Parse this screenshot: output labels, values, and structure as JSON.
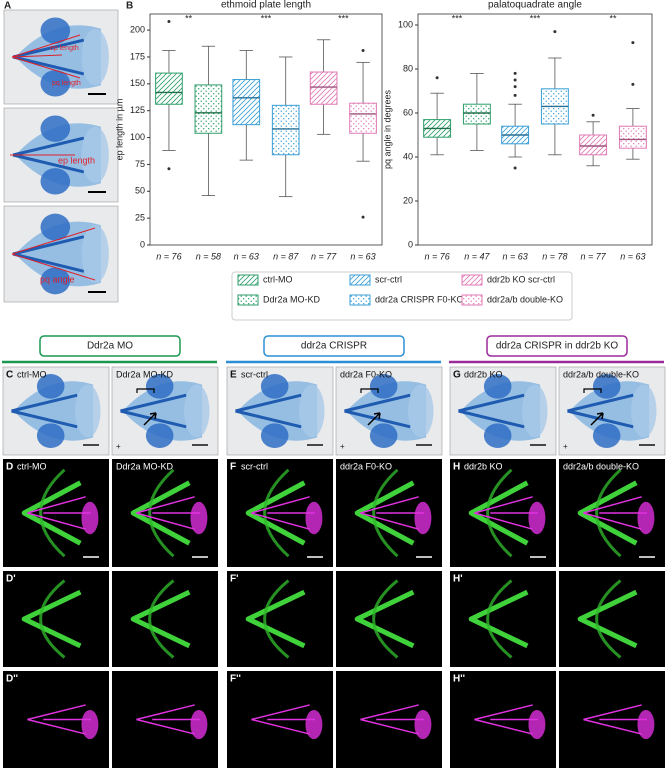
{
  "panel_labels": {
    "a": "A",
    "b": "B"
  },
  "panel_a": {
    "ep_length": "ep length",
    "pq_length": "pq length",
    "pq_angle": "pq angle"
  },
  "chart_data": [
    {
      "type": "box",
      "title": "ethmoid plate length",
      "ylabel": "ep length in µm",
      "ylim": [
        0,
        215
      ],
      "yticks": [
        0,
        25,
        50,
        75,
        100,
        125,
        150,
        175,
        200
      ],
      "significance": [
        "**",
        "***",
        "***"
      ],
      "series": [
        {
          "name": "ctrl-MO",
          "color": "#2e9e6a",
          "hatch": "diagonal",
          "whislo": 88,
          "q1": 131,
          "med": 142,
          "q3": 160,
          "whishi": 181,
          "fliers": [
            208,
            71
          ],
          "n_label": "n = 76"
        },
        {
          "name": "Ddr2a MO-KD",
          "color": "#2e9e6a",
          "hatch": "dotted",
          "whislo": 46,
          "q1": 104,
          "med": 123,
          "q3": 149,
          "whishi": 185,
          "fliers": [],
          "n_label": "n = 58"
        },
        {
          "name": "scr-ctrl",
          "color": "#3a9fd6",
          "hatch": "diagonal",
          "whislo": 79,
          "q1": 112,
          "med": 137,
          "q3": 154,
          "whishi": 181,
          "fliers": [],
          "n_label": "n = 63"
        },
        {
          "name": "ddr2a CRISPR F0-KO",
          "color": "#3a9fd6",
          "hatch": "dotted",
          "whislo": 45,
          "q1": 84,
          "med": 108,
          "q3": 130,
          "whishi": 175,
          "fliers": [],
          "n_label": "n = 87"
        },
        {
          "name": "ddr2b KO scr-ctrl",
          "color": "#e07ab5",
          "hatch": "diagonal",
          "whislo": 103,
          "q1": 131,
          "med": 147,
          "q3": 161,
          "whishi": 191,
          "fliers": [],
          "n_label": "n = 77"
        },
        {
          "name": "ddr2a/b double-KO",
          "color": "#e07ab5",
          "hatch": "dotted",
          "whislo": 78,
          "q1": 104,
          "med": 122,
          "q3": 132,
          "whishi": 170,
          "fliers": [
            181,
            26
          ],
          "n_label": "n = 63"
        }
      ]
    },
    {
      "type": "box",
      "title": "palatoquadrate angle",
      "ylabel": "pq angle in degrees",
      "ylim": [
        0,
        105
      ],
      "yticks": [
        0,
        20,
        40,
        60,
        80,
        100
      ],
      "significance": [
        "***",
        "***",
        "**"
      ],
      "series": [
        {
          "name": "ctrl-MO",
          "color": "#2e9e6a",
          "hatch": "diagonal",
          "whislo": 41,
          "q1": 49,
          "med": 53,
          "q3": 57,
          "whishi": 69,
          "fliers": [
            76
          ],
          "n_label": "n = 76"
        },
        {
          "name": "Ddr2a MO-KD",
          "color": "#2e9e6a",
          "hatch": "dotted",
          "whislo": 43,
          "q1": 55,
          "med": 60,
          "q3": 64,
          "whishi": 78,
          "fliers": [],
          "n_label": "n = 47"
        },
        {
          "name": "scr-ctrl",
          "color": "#3a9fd6",
          "hatch": "diagonal",
          "whislo": 40,
          "q1": 46,
          "med": 50,
          "q3": 54,
          "whishi": 64,
          "fliers": [
            68,
            72,
            75,
            78,
            35
          ],
          "n_label": "n = 63"
        },
        {
          "name": "ddr2a CRISPR F0-KO",
          "color": "#3a9fd6",
          "hatch": "dotted",
          "whislo": 41,
          "q1": 55,
          "med": 63,
          "q3": 71,
          "whishi": 85,
          "fliers": [
            97
          ],
          "n_label": "n = 78"
        },
        {
          "name": "ddr2b KO scr-ctrl",
          "color": "#e07ab5",
          "hatch": "diagonal",
          "whislo": 36,
          "q1": 41,
          "med": 45,
          "q3": 50,
          "whishi": 56,
          "fliers": [
            59
          ],
          "n_label": "n = 77"
        },
        {
          "name": "ddr2a/b double-KO",
          "color": "#e07ab5",
          "hatch": "dotted",
          "whislo": 39,
          "q1": 44,
          "med": 48,
          "q3": 54,
          "whishi": 62,
          "fliers": [
            73,
            92
          ],
          "n_label": "n = 63"
        }
      ]
    }
  ],
  "groups": [
    {
      "title": "Ddr2a MO",
      "color": "#1a9850",
      "labels": [
        "C",
        "D",
        "D'",
        "D''"
      ],
      "left": "ctrl-MO",
      "right": "Ddr2a MO-KD",
      "marker": "+"
    },
    {
      "title": "ddr2a CRISPR",
      "color": "#2b8fd6",
      "labels": [
        "E",
        "F",
        "F'",
        "F''"
      ],
      "left": "scr-ctrl",
      "right": "ddr2a F0-KO",
      "marker": "+"
    },
    {
      "title": "ddr2a CRISPR in ddr2b KO",
      "color": "#9b2a9b",
      "labels": [
        "G",
        "H",
        "H'",
        "H''"
      ],
      "left": "ddr2b KO",
      "right": "ddr2a/b double-KO",
      "marker": "+"
    }
  ]
}
